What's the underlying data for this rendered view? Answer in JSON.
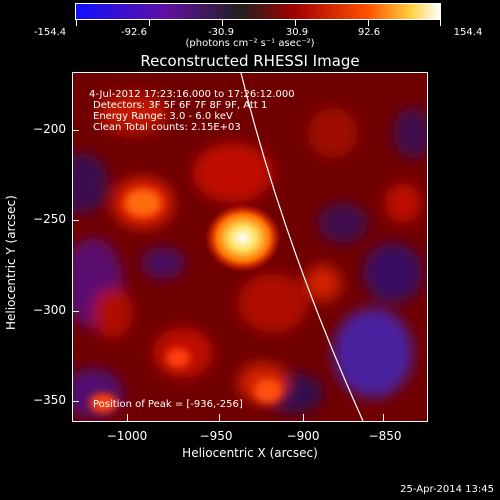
{
  "colorbar": {
    "ticks": [
      "-154.4",
      "-92.6",
      "-30.9",
      "30.9",
      "92.6",
      "154.4"
    ],
    "units": "(photons cm⁻² s⁻¹ asec⁻²)"
  },
  "title": "Reconstructed RHESSI Image",
  "info": {
    "time": "4-Jul-2012 17:23:16.000 to 17:26:12.000",
    "detectors": "Detectors: 3F 5F 6F 7F 8F 9F, Att 1",
    "energy": "Energy Range: 3.0 - 6.0 keV",
    "clean": "Clean    Total counts: 2.15E+03"
  },
  "peak": "Position of Peak = [-936,-256]",
  "axes": {
    "xlabel": "Heliocentric X (arcsec)",
    "ylabel": "Heliocentric Y (arcsec)",
    "xticks": [
      "−1000",
      "−950",
      "−900",
      "−850"
    ],
    "yticks": [
      "−200",
      "−250",
      "−300",
      "−350"
    ]
  },
  "footer": "25-Apr-2014 13:45"
}
